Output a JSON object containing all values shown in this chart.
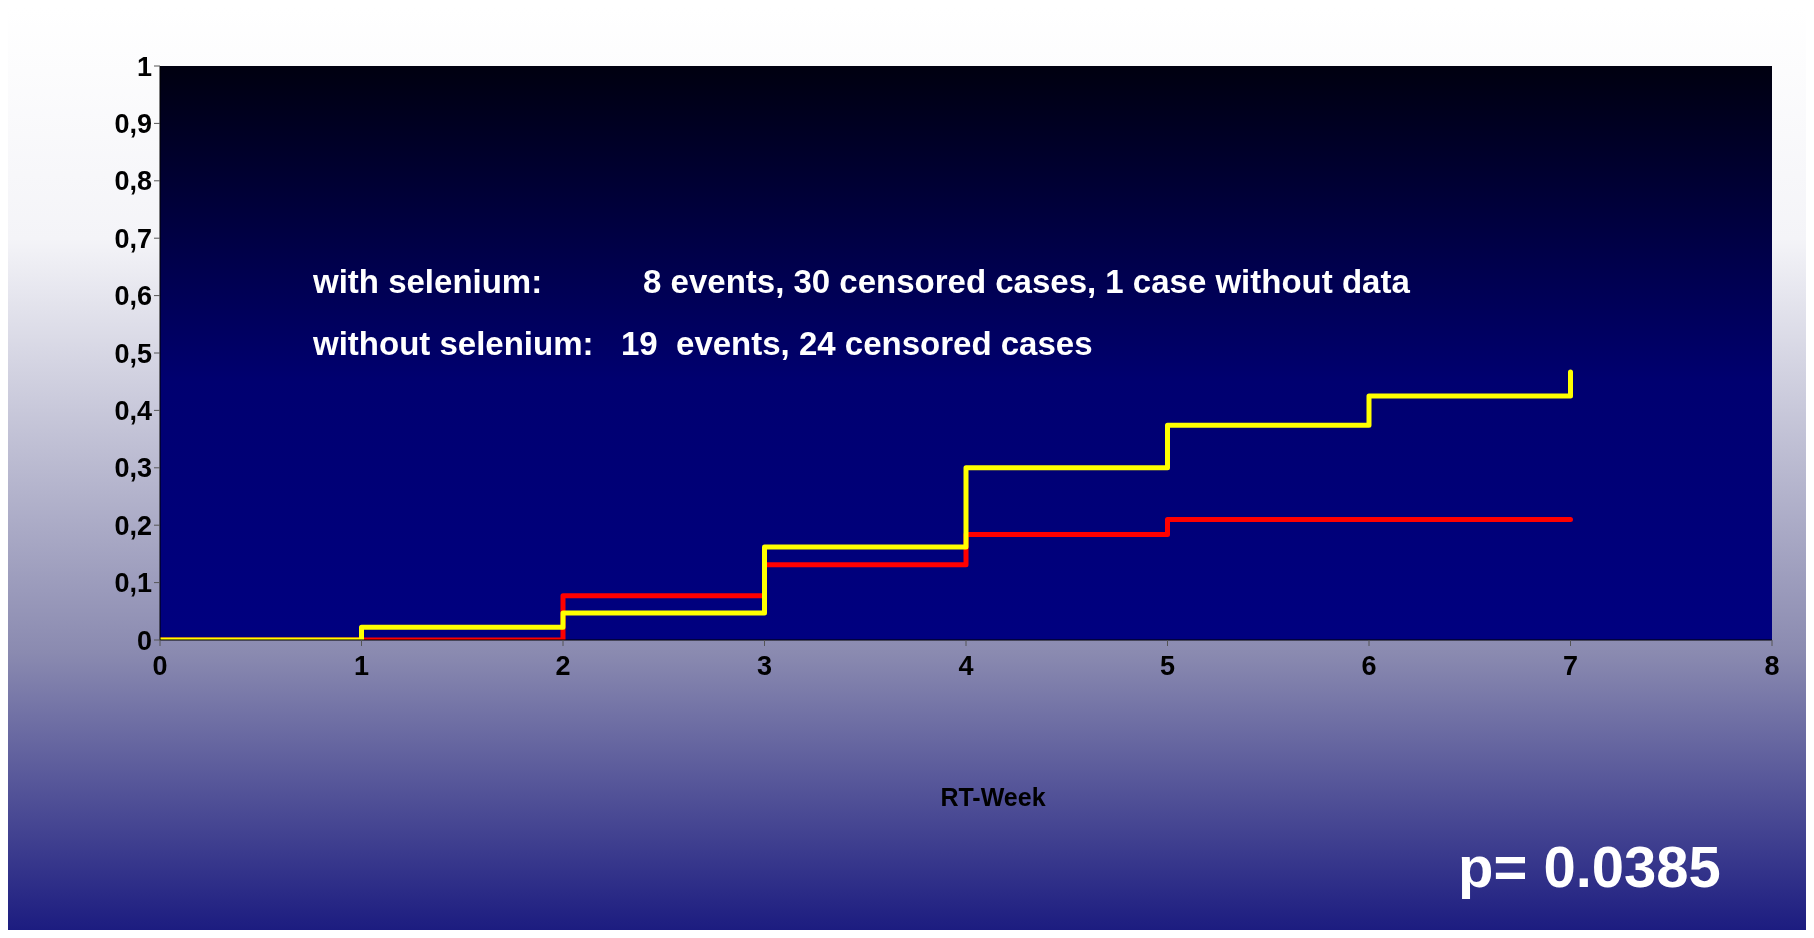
{
  "chart_data": {
    "type": "step",
    "xlabel": "RT-Week",
    "annotations": [
      "with selenium:           8 events, 30 censored cases, 1 case without data",
      "without selenium:   19  events, 24 censored cases",
      "p= 0.0385"
    ],
    "series": [
      {
        "color": "#ff0000",
        "x": [
          0,
          1,
          2,
          3,
          4,
          5,
          7
        ],
        "values": [
          0,
          0,
          0.077,
          0.131,
          0.184,
          0.21,
          0.21
        ]
      },
      {
        "color": "#ffff00",
        "x": [
          0,
          1,
          2,
          3,
          4,
          5,
          6,
          7,
          7
        ],
        "values": [
          0,
          0.022,
          0.047,
          0.162,
          0.3,
          0.374,
          0.425,
          0.425,
          0.467
        ]
      }
    ],
    "xlim": [
      0,
      8
    ],
    "xticks": [
      0,
      1,
      2,
      3,
      4,
      5,
      6,
      7,
      8
    ],
    "ylim": [
      0,
      1
    ],
    "yticks": [
      0,
      {
        "value": 0.1,
        "label": "0,1"
      },
      {
        "value": 0.2,
        "label": "0,2"
      },
      {
        "value": 0.3,
        "label": "0,3"
      },
      {
        "value": 0.4,
        "label": "0,4"
      },
      {
        "value": 0.5,
        "label": "0,5"
      },
      {
        "value": 0.6,
        "label": "0,6"
      },
      {
        "value": 0.7,
        "label": "0,7"
      },
      {
        "value": 0.8,
        "label": "0,8"
      },
      {
        "value": 0.9,
        "label": "0,9"
      },
      1
    ]
  }
}
